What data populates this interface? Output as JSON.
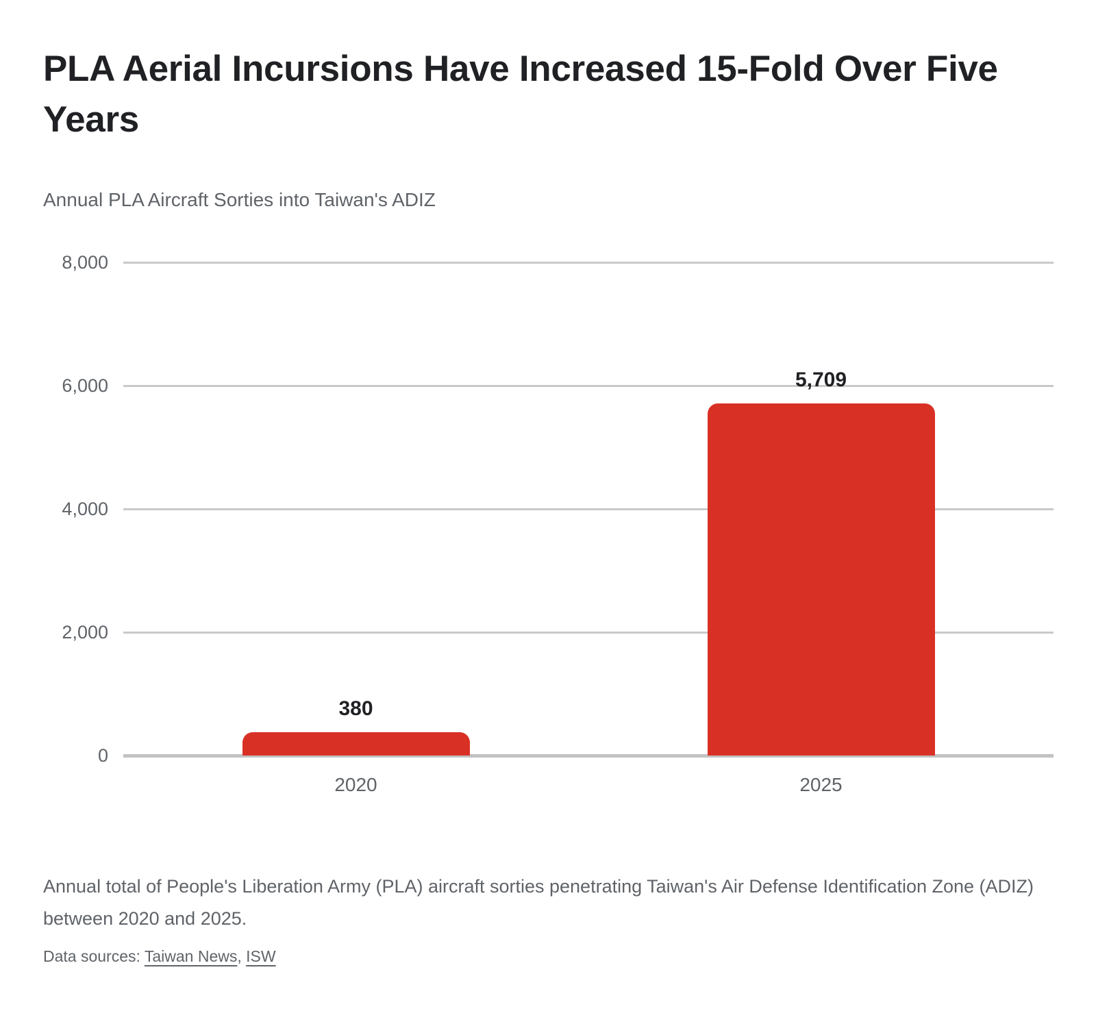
{
  "chart_data": {
    "type": "bar",
    "title": "PLA Aerial Incursions Have Increased 15-Fold Over Five Years",
    "subtitle": "Annual PLA Aircraft Sorties into Taiwan's ADIZ",
    "categories": [
      "2020",
      "2025"
    ],
    "values": [
      380,
      5709
    ],
    "value_labels": [
      "380",
      "5,709"
    ],
    "xlabel": "",
    "ylabel": "",
    "ylim": [
      0,
      8000
    ],
    "yticks": [
      0,
      2000,
      4000,
      6000,
      8000
    ],
    "ytick_labels": [
      "0",
      "2,000",
      "4,000",
      "6,000",
      "8,000"
    ],
    "grid": true,
    "legend": "none",
    "bar_color": "#d93025"
  },
  "footer": {
    "caption": "Annual total of People's Liberation Army (PLA) aircraft sorties penetrating Taiwan's Air Defense Identification Zone (ADIZ) between 2020 and 2025.",
    "sources_prefix": "Data sources: ",
    "sources": [
      {
        "label": "Taiwan News"
      },
      {
        "label": "ISW"
      }
    ],
    "sources_separator": ", "
  },
  "colors": {
    "bar": "#d93025",
    "title_text": "#202124",
    "secondary_text": "#5f6368",
    "gridline": "#c9c9c9",
    "axis_line": "#c2c2c2",
    "background": "#ffffff"
  }
}
